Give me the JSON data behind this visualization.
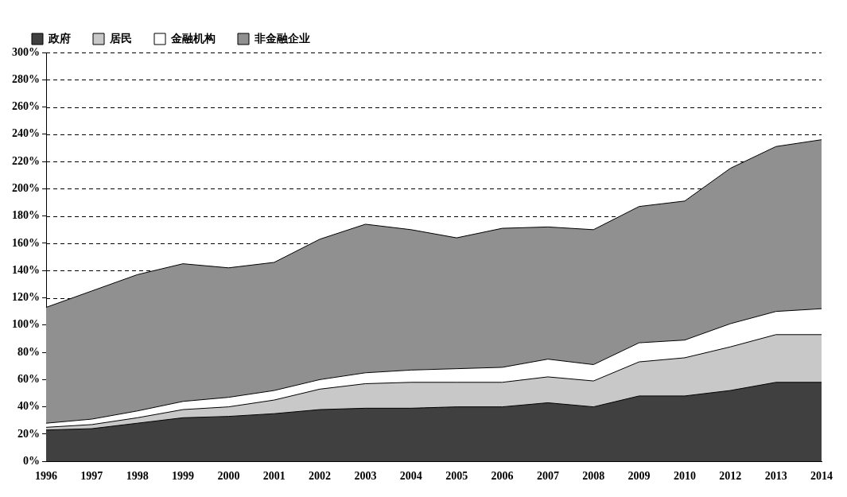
{
  "chart_data": {
    "type": "area",
    "stacked": true,
    "categories": [
      "1996",
      "1997",
      "1998",
      "1999",
      "2000",
      "2001",
      "2002",
      "2003",
      "2004",
      "2005",
      "2006",
      "2007",
      "2008",
      "2009",
      "2010",
      "2012",
      "2013",
      "2014"
    ],
    "series": [
      {
        "name": "政府",
        "color": "#404040",
        "values": [
          23,
          24,
          28,
          32,
          33,
          35,
          38,
          39,
          39,
          40,
          40,
          43,
          40,
          48,
          48,
          52,
          58,
          58
        ]
      },
      {
        "name": "居民",
        "color": "#c8c8c8",
        "values": [
          2,
          3,
          4,
          6,
          7,
          10,
          15,
          18,
          19,
          18,
          18,
          19,
          19,
          25,
          28,
          32,
          35,
          35
        ]
      },
      {
        "name": "金融机构",
        "color": "#ffffff",
        "values": [
          3,
          4,
          5,
          6,
          7,
          7,
          7,
          8,
          9,
          10,
          11,
          13,
          12,
          14,
          13,
          17,
          17,
          19
        ]
      },
      {
        "name": "非金融企业",
        "color": "#909090",
        "values": [
          85,
          94,
          100,
          101,
          95,
          94,
          103,
          109,
          103,
          96,
          102,
          97,
          99,
          100,
          102,
          114,
          121,
          124
        ]
      }
    ],
    "ylim": [
      0,
      300
    ],
    "yticks": [
      {
        "value": 0,
        "label": "0%"
      },
      {
        "value": 20,
        "label": "20%"
      },
      {
        "value": 40,
        "label": "40%"
      },
      {
        "value": 60,
        "label": "60%"
      },
      {
        "value": 80,
        "label": "80%"
      },
      {
        "value": 100,
        "label": "100%"
      },
      {
        "value": 120,
        "label": "120%"
      },
      {
        "value": 140,
        "label": "140%"
      },
      {
        "value": 160,
        "label": "160%"
      },
      {
        "value": 180,
        "label": "180%"
      },
      {
        "value": 200,
        "label": "200%"
      },
      {
        "value": 220,
        "label": "220%"
      },
      {
        "value": 240,
        "label": "240%"
      },
      {
        "value": 260,
        "label": "260%"
      },
      {
        "value": 280,
        "label": "280%"
      },
      {
        "value": 300,
        "label": "300%"
      }
    ],
    "grid": "y",
    "legend": "top left",
    "line_style": "solid",
    "marker": "none"
  }
}
